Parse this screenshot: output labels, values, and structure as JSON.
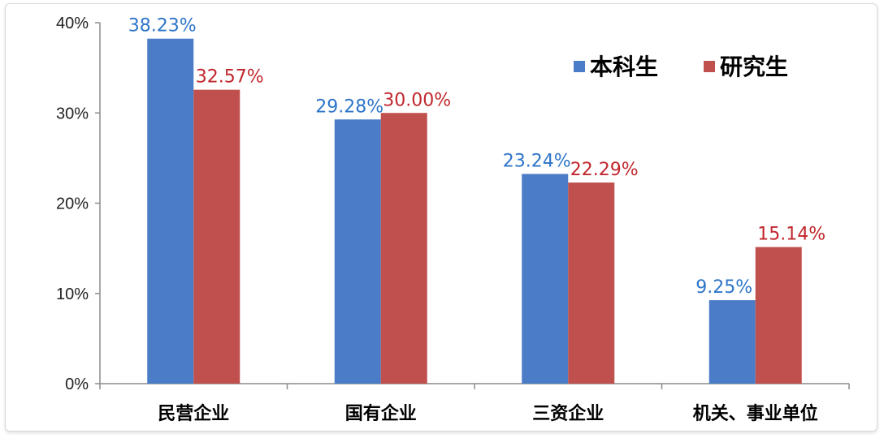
{
  "chart_data": {
    "type": "bar",
    "categories": [
      "民营企业",
      "国有企业",
      "三资企业",
      "机关、事业单位"
    ],
    "series": [
      {
        "name": "本科生",
        "values": [
          38.23,
          29.28,
          23.24,
          9.25
        ],
        "color": "#4a7cc7",
        "label_color": "#2e75c9"
      },
      {
        "name": "研究生",
        "values": [
          32.57,
          30.0,
          22.29,
          15.14
        ],
        "color": "#c0504d",
        "label_color": "#c0272d"
      }
    ],
    "value_labels": [
      [
        "38.23%",
        "29.28%",
        "23.24%",
        "9.25%"
      ],
      [
        "32.57%",
        "30.00%",
        "22.29%",
        "15.14%"
      ]
    ],
    "yticks": [
      "0%",
      "10%",
      "20%",
      "30%",
      "40%"
    ],
    "ylim": [
      0,
      40
    ],
    "legend_position": "top-right",
    "grid": false
  }
}
